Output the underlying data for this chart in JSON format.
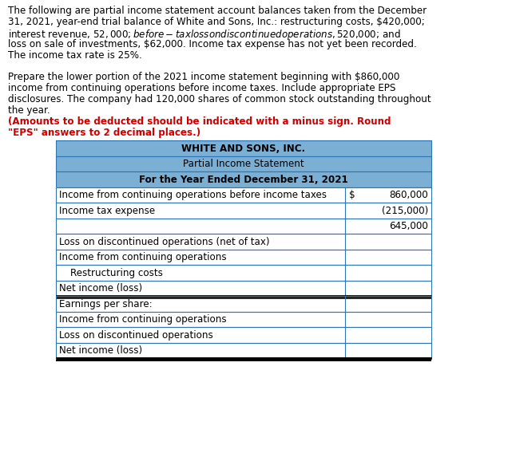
{
  "title1": "WHITE AND SONS, INC.",
  "title2": "Partial Income Statement",
  "title3": "For the Year Ended December 31, 2021",
  "header_bg": "#7BAFD4",
  "header_border": "#2E75B6",
  "p1_lines": [
    "The following are partial income statement account balances taken from the December",
    "31, 2021, year-end trial balance of White and Sons, Inc.: restructuring costs, $420,000;",
    "interest revenue, $52,000; before-tax loss on discontinued operations, $520,000; and",
    "loss on sale of investments, $62,000. Income tax expense has not yet been recorded.",
    "The income tax rate is 25%."
  ],
  "p2_lines_black": [
    "Prepare the lower portion of the 2021 income statement beginning with $860,000",
    "income from continuing operations before income taxes. Include appropriate EPS",
    "disclosures. The company had 120,000 shares of common stock outstanding throughout",
    "the year. "
  ],
  "p2_line_red1": "(Amounts to be deducted should be indicated with a minus sign. Round",
  "p2_line_red2": "\"EPS\" answers to 2 decimal places.)",
  "rows": [
    {
      "label": "Income from continuing operations before income taxes",
      "col1": "$",
      "col2": "860,000",
      "indent": false,
      "double_bottom": false,
      "no_right_col_border": false
    },
    {
      "label": "Income tax expense",
      "col1": "",
      "col2": "(215,000)",
      "indent": false,
      "double_bottom": false,
      "no_right_col_border": false
    },
    {
      "label": "",
      "col1": "",
      "col2": "645,000",
      "indent": false,
      "double_bottom": false,
      "no_right_col_border": false
    },
    {
      "label": "Loss on discontinued operations (net of tax)",
      "col1": "",
      "col2": "",
      "indent": false,
      "double_bottom": false,
      "no_right_col_border": false
    },
    {
      "label": "Income from continuing operations",
      "col1": "",
      "col2": "",
      "indent": false,
      "double_bottom": false,
      "no_right_col_border": false
    },
    {
      "label": "Restructuring costs",
      "col1": "",
      "col2": "",
      "indent": true,
      "double_bottom": false,
      "no_right_col_border": false
    },
    {
      "label": "Net income (loss)",
      "col1": "",
      "col2": "",
      "indent": false,
      "double_bottom": true,
      "no_right_col_border": false
    },
    {
      "label": "Earnings per share:",
      "col1": "",
      "col2": "",
      "indent": false,
      "double_bottom": false,
      "no_right_col_border": true
    },
    {
      "label": "Income from continuing operations",
      "col1": "",
      "col2": "",
      "indent": false,
      "double_bottom": false,
      "no_right_col_border": false
    },
    {
      "label": "Loss on discontinued operations",
      "col1": "",
      "col2": "",
      "indent": false,
      "double_bottom": false,
      "no_right_col_border": false
    },
    {
      "label": "Net income (loss)",
      "col1": "",
      "col2": "",
      "indent": false,
      "double_bottom": true,
      "no_right_col_border": false
    }
  ],
  "fig_w": 6.36,
  "fig_h": 5.73,
  "dpi": 100
}
